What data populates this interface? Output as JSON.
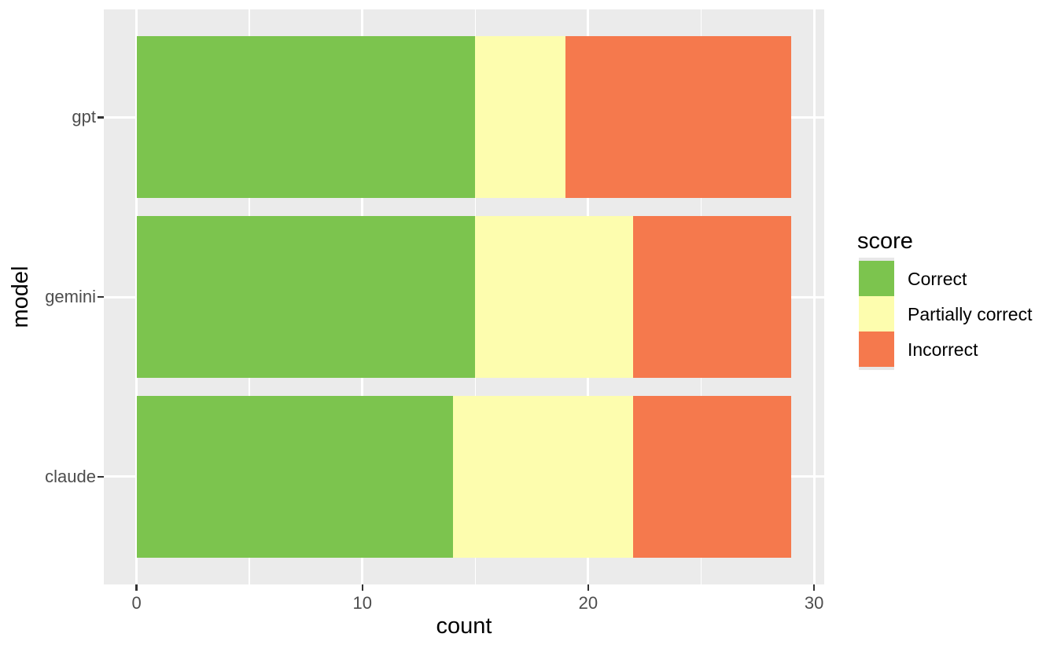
{
  "chart_data": {
    "type": "bar",
    "orientation": "horizontal",
    "stacked": true,
    "title": "",
    "xlabel": "count",
    "ylabel": "model",
    "categories": [
      "gpt",
      "gemini",
      "claude"
    ],
    "series": [
      {
        "name": "Correct",
        "color": "#7CC44E",
        "values": [
          15,
          15,
          14
        ]
      },
      {
        "name": "Partially correct",
        "color": "#FDFDAE",
        "values": [
          4,
          7,
          8
        ]
      },
      {
        "name": "Incorrect",
        "color": "#F5794D",
        "values": [
          10,
          7,
          7
        ]
      }
    ],
    "x_tick_labels": [
      "0",
      "10",
      "20",
      "30"
    ],
    "x_ticks": [
      0,
      10,
      20,
      30
    ],
    "x_minor_ticks": [
      5,
      15,
      25
    ],
    "xlim": [
      -1.45,
      30.45
    ],
    "legend_title": "score",
    "legend_position": "right",
    "grid": true,
    "panel_bg": "#EBEBEB",
    "grid_color": "#FFFFFF",
    "tick_label_color": "#4D4D4D",
    "tick_mark_color": "#333333"
  }
}
